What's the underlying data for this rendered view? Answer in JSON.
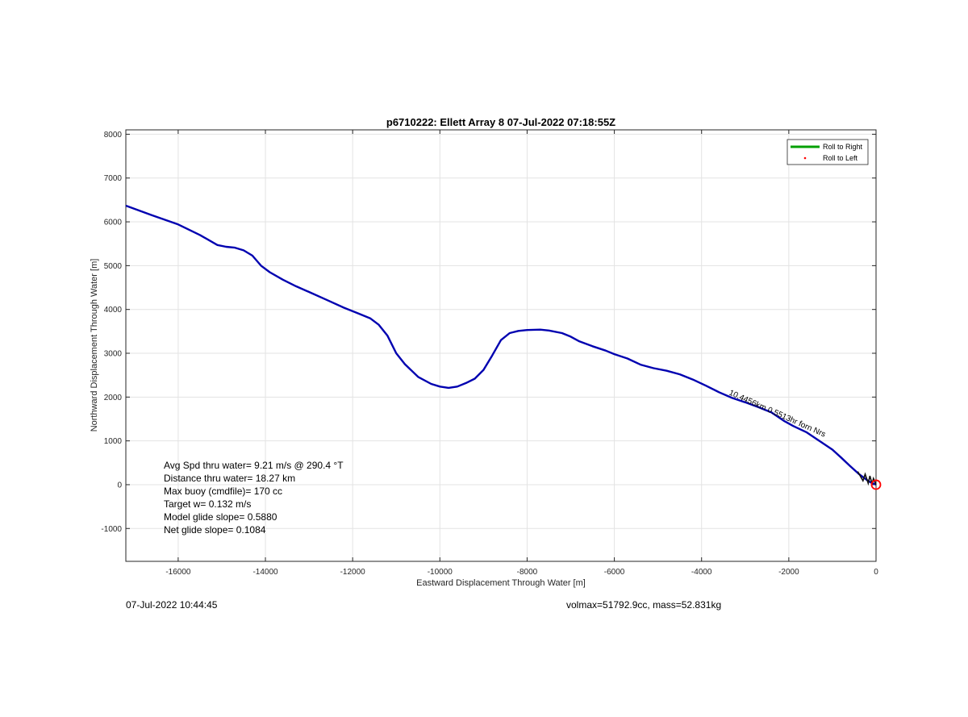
{
  "chart_data": {
    "type": "line",
    "title": "p6710222: Ellett Array 8 07-Jul-2022 07:18:55Z",
    "xlabel": "Eastward Displacement Through Water [m]",
    "ylabel": "Northward Displacement Through Water [m]",
    "xlim": [
      -17200,
      0
    ],
    "ylim": [
      -1750,
      8100
    ],
    "xticks": [
      -16000,
      -14000,
      -12000,
      -10000,
      -8000,
      -6000,
      -4000,
      -2000,
      0
    ],
    "yticks": [
      -1000,
      0,
      1000,
      2000,
      3000,
      4000,
      5000,
      6000,
      7000,
      8000
    ],
    "grid": true,
    "legend_position": "top-right",
    "legend": [
      {
        "label": "Roll to Right",
        "color": "#00a000",
        "marker": "line"
      },
      {
        "label": "Roll to Left",
        "color": "#ff0000",
        "marker": "dot"
      }
    ],
    "series": [
      {
        "color": "#0000b0",
        "x": [
          -17200,
          -16600,
          -16000,
          -15500,
          -15100,
          -14900,
          -14700,
          -14500,
          -14300,
          -14100,
          -13900,
          -13600,
          -13300,
          -13000,
          -12600,
          -12200,
          -11900,
          -11600,
          -11400,
          -11200,
          -11000,
          -10800,
          -10500,
          -10200,
          -10000,
          -9800,
          -9600,
          -9400,
          -9200,
          -9000,
          -8800,
          -8600,
          -8400,
          -8200,
          -8000,
          -7700,
          -7500,
          -7200,
          -7000,
          -6800,
          -6500,
          -6200,
          -6000,
          -5700,
          -5400,
          -5100,
          -4800,
          -4500,
          -4200,
          -3900,
          -3600,
          -3300,
          -3000,
          -2700,
          -2400,
          -2100,
          -1900,
          -1600,
          -1300,
          -1000,
          -800,
          -600,
          -400,
          -200,
          -100,
          0
        ],
        "y": [
          6370,
          6150,
          5940,
          5700,
          5470,
          5430,
          5410,
          5350,
          5230,
          5000,
          4850,
          4680,
          4530,
          4400,
          4220,
          4040,
          3920,
          3800,
          3650,
          3400,
          3000,
          2750,
          2460,
          2300,
          2240,
          2210,
          2240,
          2320,
          2420,
          2620,
          2950,
          3300,
          3460,
          3510,
          3530,
          3540,
          3520,
          3460,
          3380,
          3270,
          3160,
          3060,
          2980,
          2880,
          2740,
          2660,
          2600,
          2520,
          2400,
          2260,
          2110,
          1980,
          1880,
          1770,
          1650,
          1450,
          1340,
          1200,
          1000,
          800,
          620,
          430,
          250,
          100,
          40,
          0
        ]
      }
    ],
    "end_marker": {
      "x": 0,
      "y": 0,
      "color": "#ff0000"
    },
    "annotation": {
      "text": "10.4456km  0.5513hr  forn  Nrs",
      "x": -3300,
      "y": 2150
    },
    "stats": [
      "Avg Spd thru water=  9.21 m/s @ 290.4 °T",
      "Distance thru water= 18.27 km",
      "Max buoy (cmdfile)= 170 cc",
      "Target w= 0.132 m/s",
      "Model glide slope= 0.5880",
      "Net glide slope= 0.1084"
    ]
  },
  "footer": {
    "left": "07-Jul-2022 10:44:45",
    "right": "volmax=51792.9cc, mass=52.831kg"
  }
}
